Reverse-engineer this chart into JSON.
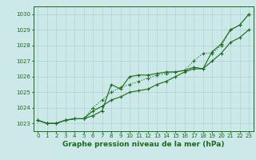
{
  "x": [
    0,
    1,
    2,
    3,
    4,
    5,
    6,
    7,
    8,
    9,
    10,
    11,
    12,
    13,
    14,
    15,
    16,
    17,
    18,
    19,
    20,
    21,
    22,
    23
  ],
  "line1": [
    1023.2,
    1023.0,
    1023.0,
    1023.2,
    1023.3,
    1023.3,
    1023.5,
    1023.8,
    1025.5,
    1025.2,
    1026.0,
    1026.1,
    1026.1,
    1026.2,
    1026.3,
    1026.3,
    1026.4,
    1026.6,
    1026.5,
    1027.6,
    1028.1,
    1029.0,
    1029.3,
    1030.0
  ],
  "line2": [
    1023.2,
    1023.0,
    1023.0,
    1023.2,
    1023.3,
    1023.3,
    1023.8,
    1024.1,
    1024.5,
    1024.7,
    1025.0,
    1025.1,
    1025.2,
    1025.5,
    1025.7,
    1026.0,
    1026.3,
    1026.5,
    1026.5,
    1027.0,
    1027.5,
    1028.2,
    1028.5,
    1029.0
  ],
  "line3": [
    1023.2,
    1023.0,
    1023.0,
    1023.2,
    1023.3,
    1023.3,
    1024.0,
    1024.5,
    1025.0,
    1025.3,
    1025.5,
    1025.7,
    1025.9,
    1026.1,
    1026.2,
    1026.3,
    1026.4,
    1027.0,
    1027.5,
    1027.5,
    1028.0,
    1029.0,
    1029.3,
    1030.0
  ],
  "ylim": [
    1022.5,
    1030.5
  ],
  "xlim": [
    -0.5,
    23.5
  ],
  "yticks": [
    1023,
    1024,
    1025,
    1026,
    1027,
    1028,
    1029,
    1030
  ],
  "xticks": [
    0,
    1,
    2,
    3,
    4,
    5,
    6,
    7,
    8,
    9,
    10,
    11,
    12,
    13,
    14,
    15,
    16,
    17,
    18,
    19,
    20,
    21,
    22,
    23
  ],
  "xlabel": "Graphe pression niveau de la mer (hPa)",
  "line_color": "#1a6b1a",
  "bg_color": "#cce8e8",
  "grid_color": "#aad4d4",
  "tick_color": "#1a6b1a",
  "label_color": "#1a6b1a",
  "marker": "+",
  "marker_size": 3,
  "linewidth": 0.8,
  "xlabel_fontsize": 6.5,
  "tick_fontsize": 5.0
}
